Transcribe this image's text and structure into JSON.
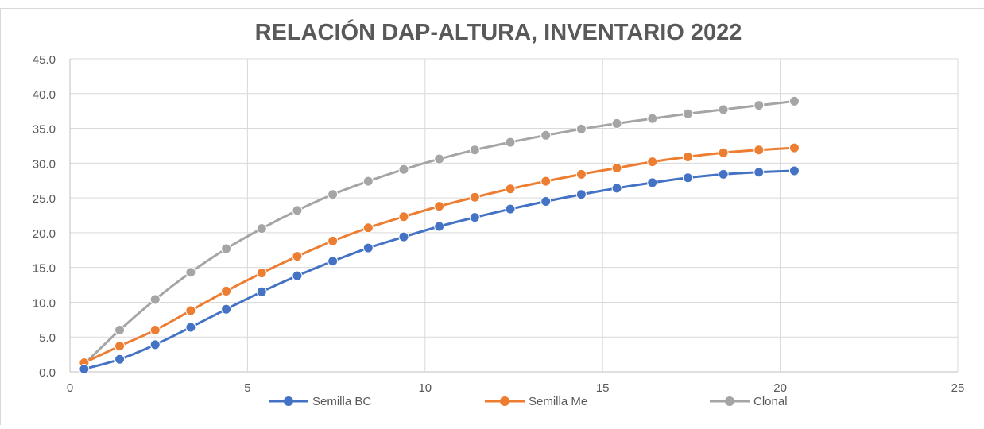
{
  "chart_data": {
    "type": "scatter",
    "title": "RELACIÓN DAP-ALTURA, INVENTARIO 2022",
    "xlabel": "",
    "ylabel": "",
    "xlim": [
      0,
      25
    ],
    "ylim": [
      0,
      45
    ],
    "x_ticks": [
      "0",
      "5",
      "10",
      "15",
      "20",
      "25"
    ],
    "y_ticks": [
      "0.0",
      "5.0",
      "10.0",
      "15.0",
      "20.0",
      "25.0",
      "30.0",
      "35.0",
      "40.0",
      "45.0"
    ],
    "grid": true,
    "legend_position": "bottom",
    "x": [
      0.4,
      1.4,
      2.4,
      3.4,
      4.4,
      5.4,
      6.4,
      7.4,
      8.4,
      9.4,
      10.4,
      11.4,
      12.4,
      13.4,
      14.4,
      15.4,
      16.4,
      17.4,
      18.4,
      19.4,
      20.4
    ],
    "series": [
      {
        "name": "Semilla BC",
        "color": "#4472c4",
        "values": [
          0.4,
          1.8,
          3.9,
          6.4,
          9.0,
          11.5,
          13.8,
          15.9,
          17.8,
          19.4,
          20.9,
          22.2,
          23.4,
          24.5,
          25.5,
          26.4,
          27.2,
          27.9,
          28.4,
          28.7,
          28.9
        ]
      },
      {
        "name": "Semilla Me",
        "color": "#ed7d31",
        "values": [
          1.3,
          3.7,
          6.0,
          8.8,
          11.6,
          14.2,
          16.6,
          18.8,
          20.7,
          22.3,
          23.8,
          25.1,
          26.3,
          27.4,
          28.4,
          29.3,
          30.2,
          30.9,
          31.5,
          31.9,
          32.2
        ]
      },
      {
        "name": "Clonal",
        "color": "#a5a5a5",
        "values": [
          1.1,
          6.0,
          10.4,
          14.3,
          17.7,
          20.6,
          23.2,
          25.5,
          27.4,
          29.1,
          30.6,
          31.9,
          33.0,
          34.0,
          34.9,
          35.7,
          36.4,
          37.1,
          37.7,
          38.3,
          38.9
        ]
      }
    ]
  }
}
